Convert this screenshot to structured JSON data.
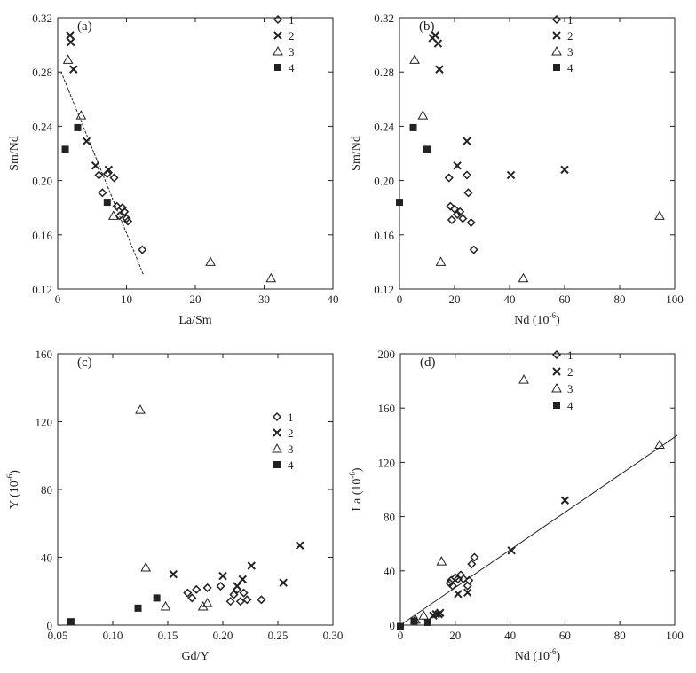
{
  "chart_data": [
    {
      "type": "scatter",
      "panel_label": "(a)",
      "xlabel": "La/Sm",
      "ylabel": "Sm/Nd",
      "xlim": [
        0,
        40
      ],
      "ylim": [
        0.12,
        0.32
      ],
      "xticks": [
        "0",
        "10",
        "20",
        "30",
        "40"
      ],
      "yticks": [
        "0.12",
        "0.16",
        "0.20",
        "0.24",
        "0.28",
        "0.32"
      ],
      "legend": [
        "1",
        "2",
        "3",
        "4"
      ],
      "legend_position": "top-right",
      "trendline": [
        [
          0.5,
          0.28
        ],
        [
          12.5,
          0.13
        ]
      ],
      "series": [
        {
          "name": "1",
          "marker": "diamond",
          "points": [
            [
              6.0,
              0.204
            ],
            [
              6.5,
              0.191
            ],
            [
              7.2,
              0.205
            ],
            [
              8.2,
              0.202
            ],
            [
              8.6,
              0.181
            ],
            [
              9.0,
              0.174
            ],
            [
              9.4,
              0.18
            ],
            [
              9.7,
              0.177
            ],
            [
              10.0,
              0.172
            ],
            [
              10.2,
              0.17
            ],
            [
              12.3,
              0.149
            ]
          ]
        },
        {
          "name": "2",
          "marker": "x",
          "points": [
            [
              1.8,
              0.307
            ],
            [
              1.9,
              0.302
            ],
            [
              2.3,
              0.282
            ],
            [
              4.2,
              0.229
            ],
            [
              5.5,
              0.211
            ],
            [
              7.4,
              0.208
            ]
          ]
        },
        {
          "name": "3",
          "marker": "triangle",
          "points": [
            [
              1.5,
              0.289
            ],
            [
              3.4,
              0.248
            ],
            [
              8.1,
              0.174
            ],
            [
              22.2,
              0.14
            ],
            [
              31.0,
              0.128
            ]
          ]
        },
        {
          "name": "4",
          "marker": "square",
          "points": [
            [
              1.1,
              0.223
            ],
            [
              2.9,
              0.239
            ],
            [
              7.2,
              0.184
            ]
          ]
        }
      ]
    },
    {
      "type": "scatter",
      "panel_label": "(b)",
      "xlabel": "Nd (10",
      "xlabel_sup": "-6",
      "xlabel_tail": ")",
      "ylabel": "Sm/Nd",
      "xlim": [
        0,
        100
      ],
      "ylim": [
        0.12,
        0.32
      ],
      "xticks": [
        "0",
        "20",
        "40",
        "60",
        "80",
        "100"
      ],
      "yticks": [
        "0.12",
        "0.16",
        "0.20",
        "0.24",
        "0.28",
        "0.32"
      ],
      "legend": [
        "1",
        "2",
        "3",
        "4"
      ],
      "legend_position": "top-right",
      "series": [
        {
          "name": "1",
          "marker": "diamond",
          "points": [
            [
              18.0,
              0.202
            ],
            [
              18.5,
              0.181
            ],
            [
              19.0,
              0.171
            ],
            [
              20.0,
              0.179
            ],
            [
              21.0,
              0.175
            ],
            [
              22.0,
              0.177
            ],
            [
              23.0,
              0.172
            ],
            [
              24.5,
              0.204
            ],
            [
              25.0,
              0.191
            ],
            [
              26.0,
              0.169
            ],
            [
              27.0,
              0.149
            ]
          ]
        },
        {
          "name": "2",
          "marker": "x",
          "points": [
            [
              12.0,
              0.305
            ],
            [
              13.0,
              0.307
            ],
            [
              14.0,
              0.301
            ],
            [
              14.5,
              0.282
            ],
            [
              21.0,
              0.211
            ],
            [
              24.5,
              0.229
            ],
            [
              40.5,
              0.204
            ],
            [
              60.0,
              0.208
            ]
          ]
        },
        {
          "name": "3",
          "marker": "triangle",
          "points": [
            [
              5.5,
              0.289
            ],
            [
              8.5,
              0.248
            ],
            [
              15.0,
              0.14
            ],
            [
              45.0,
              0.128
            ],
            [
              94.5,
              0.174
            ]
          ]
        },
        {
          "name": "4",
          "marker": "square",
          "points": [
            [
              0.0,
              0.184
            ],
            [
              5.0,
              0.239
            ],
            [
              10.0,
              0.223
            ]
          ]
        }
      ]
    },
    {
      "type": "scatter",
      "panel_label": "(c)",
      "xlabel": "Gd/Y",
      "ylabel": "Y (10",
      "ylabel_sup": "-6",
      "ylabel_tail": ")",
      "xlim": [
        0.05,
        0.3
      ],
      "ylim": [
        0,
        160
      ],
      "xticks": [
        "0.05",
        "0.10",
        "0.15",
        "0.20",
        "0.25",
        "0.30"
      ],
      "yticks": [
        "0",
        "40",
        "80",
        "120",
        "160"
      ],
      "legend": [
        "1",
        "2",
        "3",
        "4"
      ],
      "legend_position": "middle-right",
      "series": [
        {
          "name": "1",
          "marker": "diamond",
          "points": [
            [
              0.168,
              19
            ],
            [
              0.172,
              16
            ],
            [
              0.176,
              21
            ],
            [
              0.186,
              22
            ],
            [
              0.198,
              23
            ],
            [
              0.207,
              14
            ],
            [
              0.21,
              18
            ],
            [
              0.213,
              21
            ],
            [
              0.216,
              14
            ],
            [
              0.219,
              19
            ],
            [
              0.222,
              15
            ],
            [
              0.235,
              15
            ]
          ]
        },
        {
          "name": "2",
          "marker": "x",
          "points": [
            [
              0.155,
              30
            ],
            [
              0.2,
              29
            ],
            [
              0.213,
              23
            ],
            [
              0.218,
              27
            ],
            [
              0.226,
              35
            ],
            [
              0.255,
              25
            ],
            [
              0.27,
              47
            ]
          ]
        },
        {
          "name": "3",
          "marker": "triangle",
          "points": [
            [
              0.125,
              127
            ],
            [
              0.13,
              34
            ],
            [
              0.148,
              11
            ],
            [
              0.182,
              11
            ],
            [
              0.186,
              13
            ]
          ]
        },
        {
          "name": "4",
          "marker": "square",
          "points": [
            [
              0.062,
              2
            ],
            [
              0.123,
              10
            ],
            [
              0.14,
              16
            ]
          ]
        }
      ]
    },
    {
      "type": "scatter",
      "panel_label": "(d)",
      "xlabel": "Nd (10",
      "xlabel_sup": "-6",
      "xlabel_tail": ")",
      "ylabel": "La (10",
      "ylabel_sup": "-6",
      "ylabel_tail": ")",
      "xlim": [
        0,
        100
      ],
      "ylim": [
        0,
        200
      ],
      "xticks": [
        "0",
        "20",
        "40",
        "60",
        "80",
        "100"
      ],
      "yticks": [
        "0",
        "40",
        "80",
        "120",
        "160",
        "200"
      ],
      "legend": [
        "1",
        "2",
        "3",
        "4"
      ],
      "legend_position": "top-center",
      "trendline": [
        [
          0,
          0
        ],
        [
          101,
          140
        ]
      ],
      "series": [
        {
          "name": "1",
          "marker": "diamond",
          "points": [
            [
              18.0,
              31
            ],
            [
              18.5,
              33
            ],
            [
              19.0,
              29
            ],
            [
              20.0,
              35
            ],
            [
              21.0,
              34
            ],
            [
              22.0,
              37
            ],
            [
              23.0,
              34
            ],
            [
              24.5,
              29
            ],
            [
              25.0,
              33
            ],
            [
              26.0,
              45
            ],
            [
              27.0,
              50
            ]
          ]
        },
        {
          "name": "2",
          "marker": "x",
          "points": [
            [
              12.0,
              7
            ],
            [
              13.0,
              8
            ],
            [
              14.0,
              8
            ],
            [
              14.5,
              9
            ],
            [
              21.0,
              23
            ],
            [
              24.5,
              24
            ],
            [
              40.5,
              55
            ],
            [
              60.0,
              92
            ]
          ]
        },
        {
          "name": "3",
          "marker": "triangle",
          "points": [
            [
              5.5,
              4
            ],
            [
              8.5,
              7
            ],
            [
              15.0,
              47
            ],
            [
              45.0,
              181
            ],
            [
              94.5,
              133
            ]
          ]
        },
        {
          "name": "4",
          "marker": "square",
          "points": [
            [
              0.0,
              -1
            ],
            [
              5.0,
              3
            ],
            [
              10.0,
              2
            ]
          ]
        }
      ]
    }
  ]
}
